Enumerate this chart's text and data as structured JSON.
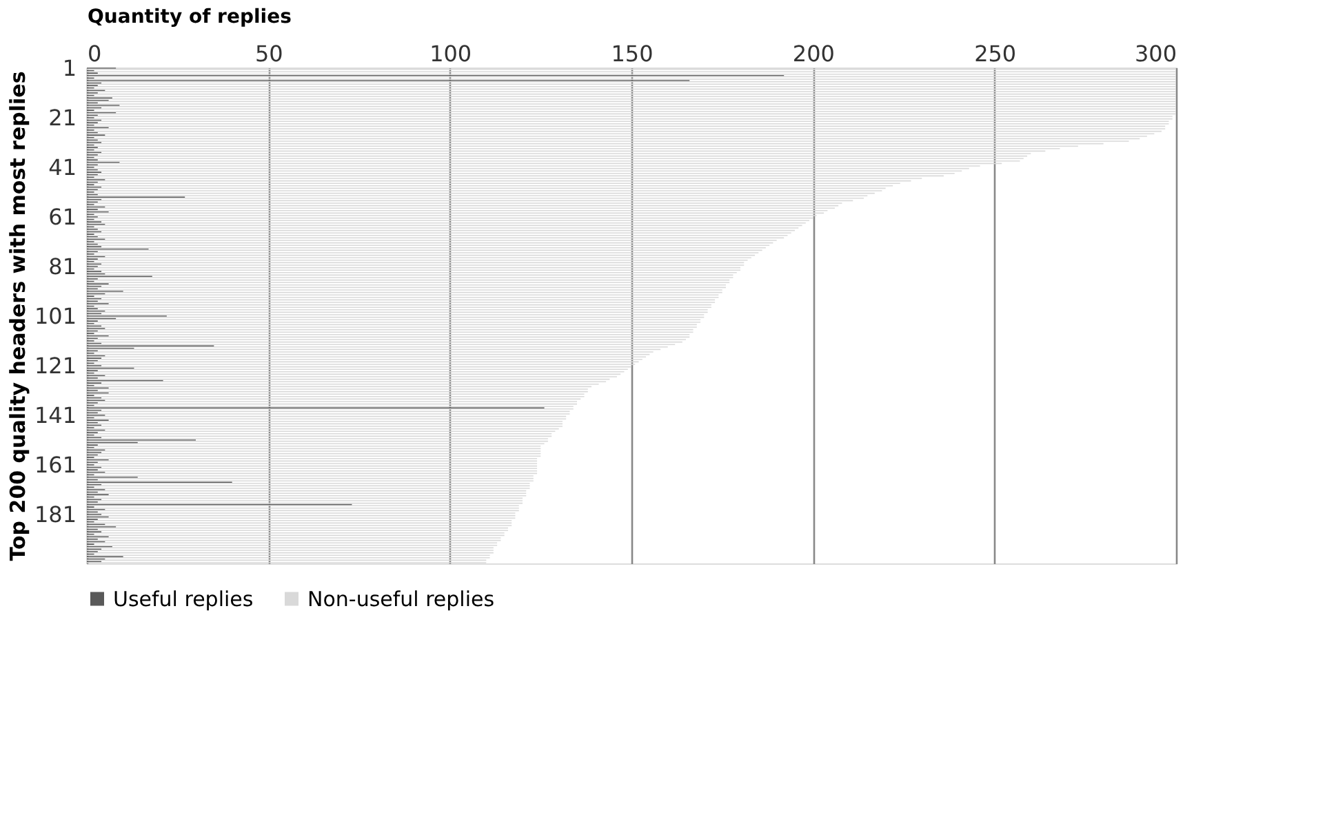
{
  "chart_data": {
    "type": "bar",
    "orientation": "horizontal",
    "xlabel": "Quantity of replies",
    "ylabel": "Top 200 quality headers with most replies",
    "categories": [
      "1",
      null,
      null,
      null,
      null,
      null,
      null,
      null,
      null,
      null,
      null,
      null,
      null,
      null,
      null,
      null,
      null,
      null,
      null,
      null,
      "21",
      null,
      null,
      null,
      null,
      null,
      null,
      null,
      null,
      null,
      null,
      null,
      null,
      null,
      null,
      null,
      null,
      null,
      null,
      null,
      "41",
      null,
      null,
      null,
      null,
      null,
      null,
      null,
      null,
      null,
      null,
      null,
      null,
      null,
      null,
      null,
      null,
      null,
      null,
      null,
      "61",
      null,
      null,
      null,
      null,
      null,
      null,
      null,
      null,
      null,
      null,
      null,
      null,
      null,
      null,
      null,
      null,
      null,
      null,
      null,
      "81",
      null,
      null,
      null,
      null,
      null,
      null,
      null,
      null,
      null,
      null,
      null,
      null,
      null,
      null,
      null,
      null,
      null,
      null,
      null,
      "101",
      null,
      null,
      null,
      null,
      null,
      null,
      null,
      null,
      null,
      null,
      null,
      null,
      null,
      null,
      null,
      null,
      null,
      null,
      null,
      "121",
      null,
      null,
      null,
      null,
      null,
      null,
      null,
      null,
      null,
      null,
      null,
      null,
      null,
      null,
      null,
      null,
      null,
      null,
      null,
      "141",
      null,
      null,
      null,
      null,
      null,
      null,
      null,
      null,
      null,
      null,
      null,
      null,
      null,
      null,
      null,
      null,
      null,
      null,
      null,
      "161",
      null,
      null,
      null,
      null,
      null,
      null,
      null,
      null,
      null,
      null,
      null,
      null,
      null,
      null,
      null,
      null,
      null,
      null,
      null,
      "181",
      null,
      null,
      null,
      null,
      null,
      null,
      null,
      null,
      null,
      null,
      null,
      null,
      null,
      null,
      null,
      null,
      null,
      null,
      null
    ],
    "series": [
      {
        "name": "Useful replies",
        "color": "#595959",
        "values": [
          8,
          2,
          3,
          192,
          2,
          166,
          4,
          3,
          2,
          5,
          3,
          2,
          7,
          6,
          3,
          9,
          4,
          2,
          8,
          3,
          2,
          4,
          3,
          2,
          6,
          2,
          3,
          5,
          2,
          3,
          4,
          2,
          3,
          2,
          4,
          3,
          2,
          3,
          9,
          3,
          2,
          3,
          4,
          3,
          2,
          5,
          3,
          2,
          4,
          3,
          2,
          3,
          27,
          4,
          3,
          2,
          5,
          3,
          6,
          2,
          3,
          2,
          4,
          5,
          2,
          3,
          4,
          2,
          3,
          5,
          2,
          3,
          4,
          17,
          3,
          2,
          5,
          3,
          2,
          4,
          3,
          2,
          4,
          5,
          18,
          3,
          2,
          6,
          4,
          3,
          10,
          5,
          2,
          4,
          3,
          6,
          2,
          3,
          5,
          4,
          22,
          8,
          3,
          2,
          4,
          5,
          3,
          2,
          6,
          3,
          2,
          4,
          35,
          13,
          3,
          2,
          5,
          4,
          3,
          2,
          4,
          13,
          3,
          2,
          5,
          3,
          21,
          4,
          2,
          6,
          3,
          6,
          2,
          4,
          5,
          3,
          2,
          126,
          4,
          3,
          5,
          2,
          6,
          3,
          4,
          2,
          5,
          3,
          2,
          4,
          30,
          14,
          3,
          2,
          5,
          4,
          3,
          2,
          6,
          3,
          2,
          4,
          3,
          5,
          2,
          14,
          3,
          40,
          4,
          2,
          5,
          3,
          6,
          2,
          4,
          3,
          73,
          2,
          5,
          3,
          4,
          6,
          3,
          2,
          5,
          8,
          3,
          4,
          2,
          6,
          3,
          5,
          2,
          7,
          4,
          3,
          2,
          10,
          5,
          4
        ]
      },
      {
        "name": "Non-useful replies",
        "color": "#d9d9d9",
        "values": [
          300,
          300,
          300,
          300,
          300,
          300,
          300,
          300,
          300,
          300,
          300,
          300,
          300,
          300,
          300,
          300,
          300,
          300,
          300,
          299,
          299,
          298,
          298,
          297,
          297,
          296,
          294,
          292,
          290,
          287,
          280,
          273,
          268,
          264,
          260,
          259,
          258,
          257,
          252,
          246,
          243,
          241,
          239,
          236,
          230,
          227,
          224,
          222,
          220,
          219,
          217,
          215,
          214,
          211,
          208,
          207,
          206,
          204,
          203,
          201,
          200,
          199,
          198,
          197,
          196,
          195,
          194,
          193,
          192,
          190,
          189,
          188,
          187,
          186,
          185,
          184,
          183,
          182,
          181,
          181,
          180,
          180,
          179,
          178,
          178,
          177,
          177,
          176,
          176,
          175,
          175,
          174,
          174,
          173,
          173,
          172,
          172,
          171,
          171,
          170,
          170,
          169,
          169,
          168,
          168,
          167,
          167,
          166,
          166,
          165,
          164,
          162,
          160,
          158,
          156,
          155,
          154,
          153,
          152,
          151,
          150,
          149,
          148,
          147,
          146,
          144,
          143,
          141,
          139,
          138,
          138,
          137,
          137,
          136,
          135,
          135,
          134,
          134,
          133,
          133,
          132,
          132,
          131,
          131,
          131,
          130,
          129,
          128,
          128,
          127,
          127,
          126,
          125,
          125,
          125,
          125,
          125,
          124,
          124,
          124,
          124,
          124,
          124,
          124,
          123,
          123,
          123,
          122,
          122,
          122,
          121,
          121,
          121,
          120,
          120,
          120,
          119,
          119,
          119,
          118,
          118,
          118,
          117,
          117,
          117,
          116,
          116,
          115,
          115,
          114,
          114,
          113,
          113,
          112,
          112,
          112,
          111,
          111,
          110,
          110
        ]
      }
    ],
    "xlim": [
      0,
      300
    ],
    "xticks": [
      0,
      50,
      100,
      150,
      200,
      250,
      300
    ],
    "grid": "x",
    "legend": "bottom"
  }
}
